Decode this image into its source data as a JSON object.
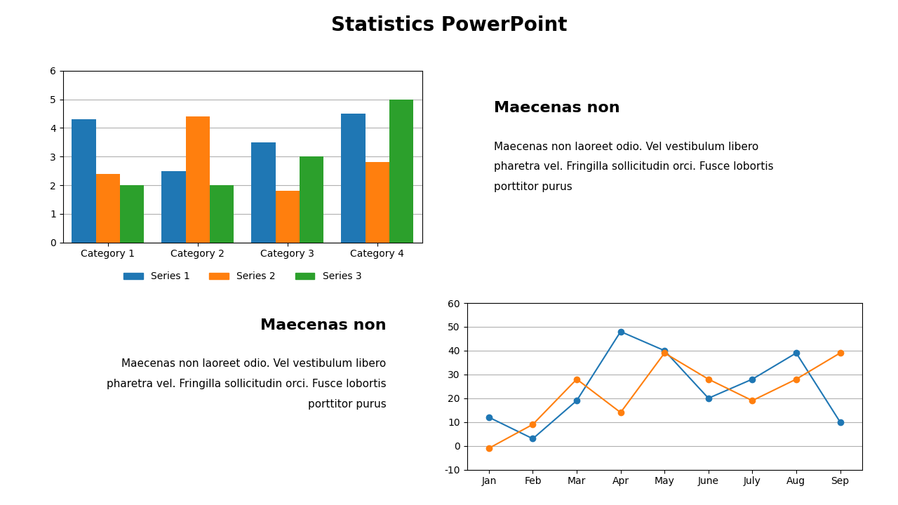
{
  "title": "Statistics PowerPoint",
  "annotations": [
    [
      "Maecenas non",
      "Maecenas non laoreet odio. Vel vestibulum libero",
      "pharetra vel. Fringilla sollicitudin orci. Fusce lobortis",
      "porttitor purus"
    ],
    [
      "Maecenas non",
      "Maecenas non laoreet odio. Vel vestibulum libero",
      "pharetra vel. Fringilla sollicitudin orci. Fusce lobortis",
      "porttitor purus"
    ]
  ],
  "chart_data": [
    {
      "type": "bar",
      "categories": [
        "Category 1",
        "Category 2",
        "Category 3",
        "Category 4"
      ],
      "series": [
        {
          "name": "Series 1",
          "values": [
            4.3,
            2.5,
            3.5,
            4.5
          ]
        },
        {
          "name": "Series 2",
          "values": [
            2.4,
            4.4,
            1.8,
            2.8
          ]
        },
        {
          "name": "Series 3",
          "values": [
            2.0,
            2.0,
            3.0,
            5.0
          ]
        }
      ],
      "ylim": [
        0,
        6
      ],
      "yticks": [
        0,
        1,
        2,
        3,
        4,
        5,
        6
      ],
      "grid": true,
      "legend": "bottom"
    },
    {
      "type": "line",
      "categories": [
        "Jan",
        "Feb",
        "Mar",
        "Apr",
        "May",
        "June",
        "July",
        "Aug",
        "Sep"
      ],
      "series": [
        {
          "values": [
            12,
            3,
            19,
            48,
            40,
            20,
            28,
            39,
            10
          ],
          "marker": "circle"
        },
        {
          "values": [
            -1,
            9,
            28,
            14,
            39,
            28,
            19,
            28,
            39
          ],
          "marker": "circle"
        }
      ],
      "ylim": [
        -10,
        60
      ],
      "yticks": [
        -10,
        0,
        10,
        20,
        30,
        40,
        50,
        60
      ],
      "grid": true
    }
  ]
}
